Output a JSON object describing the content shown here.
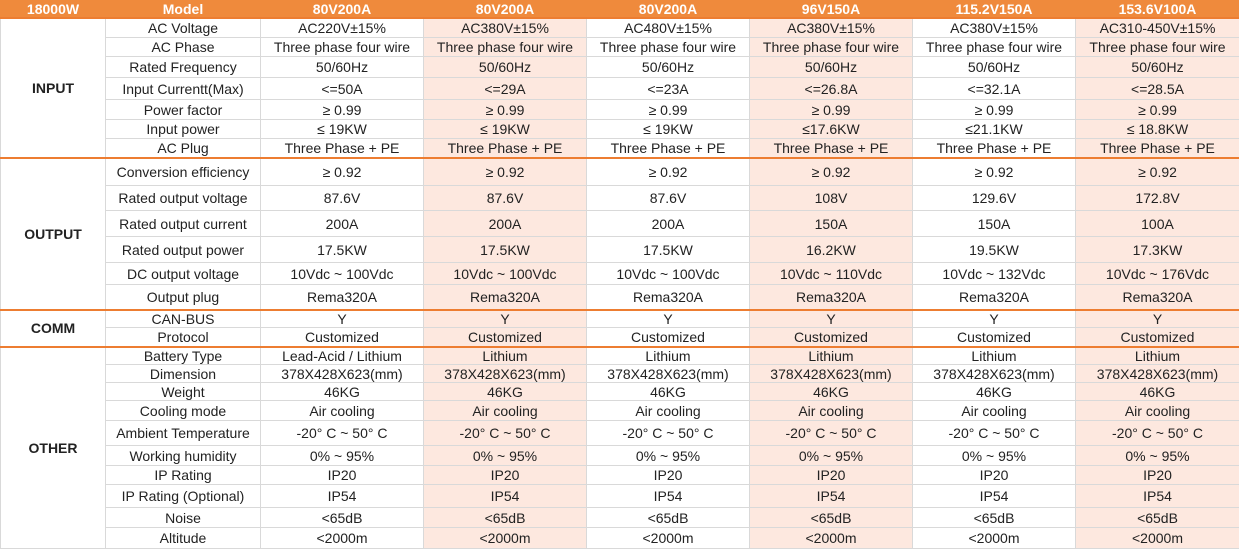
{
  "header": {
    "corner": "18000W",
    "model": "Model",
    "columns": [
      "80V200A",
      "80V200A",
      "80V200A",
      "96V150A",
      "115.2V150A",
      "153.6V100A"
    ]
  },
  "groups": [
    {
      "name": "INPUT",
      "rows": [
        {
          "label": "AC Voltage",
          "values": [
            "AC220V±15%",
            "AC380V±15%",
            "AC480V±15%",
            "AC380V±15%",
            "AC380V±15%",
            "AC310-450V±15%"
          ]
        },
        {
          "label": "AC Phase",
          "values": [
            "Three phase four wire",
            "Three phase four wire",
            "Three phase four wire",
            "Three phase four wire",
            "Three phase four wire",
            "Three phase four wire"
          ]
        },
        {
          "label": "Rated Frequency",
          "values": [
            "50/60Hz",
            "50/60Hz",
            "50/60Hz",
            "50/60Hz",
            "50/60Hz",
            "50/60Hz"
          ]
        },
        {
          "label": "Input Currentt(Max)",
          "values": [
            "<=50A",
            "<=29A",
            "<=23A",
            "<=26.8A",
            "<=32.1A",
            "<=28.5A"
          ]
        },
        {
          "label": "Power factor",
          "values": [
            "≥ 0.99",
            "≥ 0.99",
            "≥ 0.99",
            "≥ 0.99",
            "≥ 0.99",
            "≥ 0.99"
          ]
        },
        {
          "label": "Input power",
          "values": [
            "≤ 19KW",
            "≤ 19KW",
            "≤ 19KW",
            "≤17.6KW",
            "≤21.1KW",
            "≤ 18.8KW"
          ]
        },
        {
          "label": "AC Plug",
          "values": [
            "Three Phase + PE",
            "Three Phase + PE",
            "Three Phase + PE",
            "Three Phase + PE",
            "Three Phase + PE",
            "Three Phase + PE"
          ]
        }
      ]
    },
    {
      "name": "OUTPUT",
      "rows": [
        {
          "label": "Conversion efficiency",
          "values": [
            "≥ 0.92",
            "≥ 0.92",
            "≥ 0.92",
            "≥ 0.92",
            "≥ 0.92",
            "≥ 0.92"
          ]
        },
        {
          "label": "Rated output voltage",
          "values": [
            "87.6V",
            "87.6V",
            "87.6V",
            "108V",
            "129.6V",
            "172.8V"
          ]
        },
        {
          "label": "Rated output current",
          "values": [
            "200A",
            "200A",
            "200A",
            "150A",
            "150A",
            "100A"
          ]
        },
        {
          "label": "Rated output power",
          "values": [
            "17.5KW",
            "17.5KW",
            "17.5KW",
            "16.2KW",
            "19.5KW",
            "17.3KW"
          ]
        },
        {
          "label": "DC output voltage",
          "values": [
            "10Vdc ~ 100Vdc",
            "10Vdc ~ 100Vdc",
            "10Vdc ~ 100Vdc",
            "10Vdc ~ 110Vdc",
            "10Vdc ~ 132Vdc",
            "10Vdc ~ 176Vdc"
          ]
        },
        {
          "label": "Output plug",
          "values": [
            "Rema320A",
            "Rema320A",
            "Rema320A",
            "Rema320A",
            "Rema320A",
            "Rema320A"
          ]
        }
      ]
    },
    {
      "name": "COMM",
      "rows": [
        {
          "label": "CAN-BUS",
          "values": [
            "Y",
            "Y",
            "Y",
            "Y",
            "Y",
            "Y"
          ]
        },
        {
          "label": "Protocol",
          "values": [
            "Customized",
            "Customized",
            "Customized",
            "Customized",
            "Customized",
            "Customized"
          ]
        }
      ]
    },
    {
      "name": "OTHER",
      "rows": [
        {
          "label": "Battery Type",
          "values": [
            "Lead-Acid / Lithium",
            "Lithium",
            "Lithium",
            "Lithium",
            "Lithium",
            "Lithium"
          ]
        },
        {
          "label": "Dimension",
          "values": [
            "378X428X623(mm)",
            "378X428X623(mm)",
            "378X428X623(mm)",
            "378X428X623(mm)",
            "378X428X623(mm)",
            "378X428X623(mm)"
          ]
        },
        {
          "label": "Weight",
          "values": [
            "46KG",
            "46KG",
            "46KG",
            "46KG",
            "46KG",
            "46KG"
          ]
        },
        {
          "label": "Cooling mode",
          "values": [
            "Air cooling",
            "Air cooling",
            "Air cooling",
            "Air cooling",
            "Air cooling",
            "Air cooling"
          ]
        },
        {
          "label": "Ambient  Temperature",
          "values": [
            "-20° C ~ 50° C",
            "-20° C ~ 50° C",
            "-20° C ~ 50° C",
            "-20° C ~ 50° C",
            "-20° C ~ 50° C",
            "-20° C ~ 50° C"
          ]
        },
        {
          "label": "Working humidity",
          "values": [
            "0% ~ 95%",
            "0% ~ 95%",
            "0% ~ 95%",
            "0% ~ 95%",
            "0% ~ 95%",
            "0% ~ 95%"
          ]
        },
        {
          "label": "IP Rating",
          "values": [
            "IP20",
            "IP20",
            "IP20",
            "IP20",
            "IP20",
            "IP20"
          ]
        },
        {
          "label": "IP Rating (Optional)",
          "values": [
            "IP54",
            "IP54",
            "IP54",
            "IP54",
            "IP54",
            "IP54"
          ]
        },
        {
          "label": "Noise",
          "values": [
            "<65dB",
            "<65dB",
            "<65dB",
            "<65dB",
            "<65dB",
            "<65dB"
          ]
        },
        {
          "label": "Altitude",
          "values": [
            "<2000m",
            "<2000m",
            "<2000m",
            "<2000m",
            "<2000m",
            "<2000m"
          ]
        }
      ]
    }
  ]
}
